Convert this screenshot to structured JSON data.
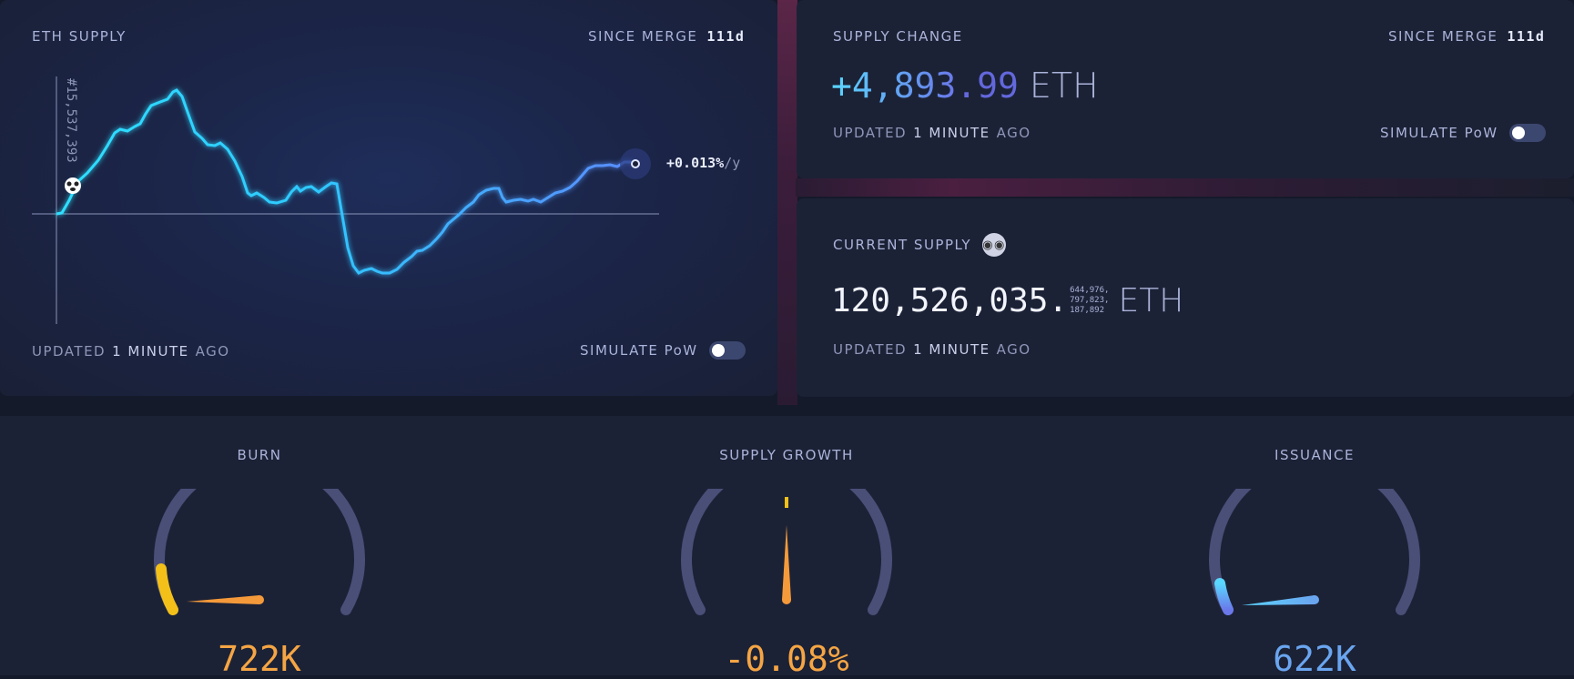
{
  "eth_supply": {
    "title": "ETH SUPPLY",
    "since_label": "SINCE MERGE",
    "since_value": "111d",
    "block_label": "#15,537,393",
    "rate_value": "+0.013%",
    "rate_unit": "/y",
    "updated_prefix": "UPDATED",
    "updated_value": "1 MINUTE",
    "updated_suffix": "AGO",
    "simulate_label": "SIMULATE PoW"
  },
  "supply_change": {
    "title": "SUPPLY CHANGE",
    "since_label": "SINCE MERGE",
    "since_value": "111d",
    "amount_int": "+4,893",
    "amount_dec": ".99",
    "unit": "ETH",
    "updated_prefix": "UPDATED",
    "updated_value": "1 MINUTE",
    "updated_suffix": "AGO",
    "simulate_label": "SIMULATE PoW"
  },
  "current_supply": {
    "title": "CURRENT SUPPLY",
    "amount": "120,526,035.",
    "decimals_line1": "644,976,",
    "decimals_line2": "797,823,",
    "decimals_line3": "187,892",
    "unit": "ETH",
    "updated_prefix": "UPDATED",
    "updated_value": "1 MINUTE",
    "updated_suffix": "AGO",
    "icon": "nerd-face-icon"
  },
  "gauges": {
    "burn": {
      "title": "BURN",
      "value": "722K",
      "color": "#f5a544",
      "level": 0.12
    },
    "supply_growth": {
      "title": "SUPPLY GROWTH",
      "value": "-0.08%",
      "color": "#f5a544",
      "level": 0.5
    },
    "issuance": {
      "title": "ISSUANCE",
      "value": "622K",
      "color": "#6aa5f0",
      "level": 0.1
    }
  },
  "colors": {
    "line_cyan": "#2ee0ff",
    "line_blue": "#5aa0ff",
    "accent_blue": "#5b6ee8",
    "burn_orange": "#f59a3a",
    "gauge_track": "#4a4f78"
  }
}
